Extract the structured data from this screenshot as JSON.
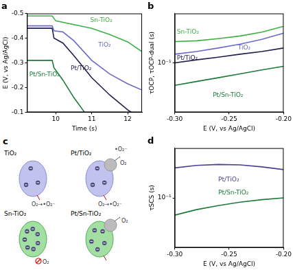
{
  "chart_data": [
    {
      "type": "line",
      "title": "a",
      "x_label": "Time (s)",
      "y_label": "E (V, vs Ag/AgCl)",
      "xlim": [
        9.2,
        12.4
      ],
      "xticks": [
        10,
        11,
        12
      ],
      "ylim": [
        -0.1,
        -0.5
      ],
      "yticks": [
        -0.5,
        -0.4,
        -0.3,
        -0.2,
        -0.1
      ],
      "grid": false,
      "series": [
        {
          "name": "Sn-TiO₂",
          "color": "#3cb043",
          "x": [
            9.2,
            9.9,
            10.0,
            10.5,
            11.0,
            11.5,
            12.0,
            12.4
          ],
          "values": [
            -0.49,
            -0.49,
            -0.47,
            -0.455,
            -0.44,
            -0.415,
            -0.385,
            -0.345
          ]
        },
        {
          "name": "TiO₂",
          "color": "#6a6ac8",
          "x": [
            9.2,
            9.9,
            9.95,
            10.2,
            10.5,
            11.0,
            11.5,
            12.0,
            12.4
          ],
          "values": [
            -0.45,
            -0.45,
            -0.43,
            -0.425,
            -0.39,
            -0.31,
            -0.255,
            -0.215,
            -0.19
          ]
        },
        {
          "name": "Pt/TiO₂",
          "color": "#1f1f4f",
          "x": [
            9.2,
            9.9,
            9.95,
            10.2,
            10.5,
            11.0,
            11.5,
            12.0,
            12.1
          ],
          "values": [
            -0.44,
            -0.44,
            -0.4,
            -0.38,
            -0.33,
            -0.24,
            -0.17,
            -0.11,
            -0.1
          ]
        },
        {
          "name": "Pt/Sn-TiO₂",
          "color": "#1a7a3a",
          "x": [
            9.2,
            9.9,
            9.95,
            10.2,
            10.5,
            10.8
          ],
          "values": [
            -0.31,
            -0.31,
            -0.28,
            -0.23,
            -0.16,
            -0.1
          ]
        }
      ]
    },
    {
      "type": "line",
      "title": "b",
      "x_label": "E (V, vs Ag/AgCl)",
      "y_label": "τOCP, τOCP-dual (s)",
      "log": "y",
      "xlim": [
        -0.3,
        -0.2
      ],
      "xticks": [
        {
          "value": -0.3,
          "label": "-0.30"
        },
        -0.25,
        {
          "value": -0.2,
          "label": "-0.20"
        }
      ],
      "ylim": [
        0.01,
        1
      ],
      "yticks": [
        {
          "value": 0.1,
          "label": "10⁻¹"
        }
      ],
      "grid": false,
      "series": [
        {
          "name": "Sn-TiO₂",
          "color": "#3cb043",
          "x": [
            -0.3,
            -0.28,
            -0.26,
            -0.24,
            -0.22,
            -0.2
          ],
          "values": [
            0.27,
            0.28,
            0.31,
            0.35,
            0.42,
            0.55
          ]
        },
        {
          "name": "TiO₂",
          "color": "#6a6ac8",
          "x": [
            -0.3,
            -0.28,
            -0.26,
            -0.24,
            -0.22,
            -0.2
          ],
          "values": [
            0.15,
            0.17,
            0.2,
            0.24,
            0.3,
            0.4
          ]
        },
        {
          "name": "Pt/TiO₂",
          "color": "#1f1f4f",
          "x": [
            -0.3,
            -0.28,
            -0.26,
            -0.24,
            -0.22,
            -0.2
          ],
          "values": [
            0.1,
            0.115,
            0.13,
            0.15,
            0.17,
            0.2
          ]
        },
        {
          "name": "Pt/Sn-TiO₂",
          "color": "#1a7a3a",
          "x": [
            -0.3,
            -0.28,
            -0.26,
            -0.24,
            -0.22,
            -0.2
          ],
          "values": [
            0.035,
            0.042,
            0.05,
            0.06,
            0.072,
            0.085
          ]
        }
      ]
    },
    {
      "type": "line",
      "title": "d",
      "x_label": "E (V, vs Ag/AgCl)",
      "y_label": "τSCS (s)",
      "log": "y",
      "xlim": [
        -0.3,
        -0.2
      ],
      "xticks": [
        {
          "value": -0.3,
          "label": "-0.30"
        },
        -0.25,
        {
          "value": -0.2,
          "label": "-0.20"
        }
      ],
      "ylim": [
        0.01,
        1
      ],
      "yticks": [
        {
          "value": 0.1,
          "label": "10⁻¹"
        }
      ],
      "grid": false,
      "series": [
        {
          "name": "Pt/TiO₂",
          "color": "#4a3f8f",
          "x": [
            -0.3,
            -0.28,
            -0.26,
            -0.24,
            -0.22,
            -0.2
          ],
          "values": [
            0.4,
            0.45,
            0.47,
            0.46,
            0.42,
            0.37
          ]
        },
        {
          "name": "Pt/Sn-TiO₂",
          "color": "#1a7a3a",
          "x": [
            -0.3,
            -0.28,
            -0.26,
            -0.24,
            -0.22,
            -0.2
          ],
          "values": [
            0.045,
            0.058,
            0.07,
            0.082,
            0.092,
            0.1
          ]
        }
      ]
    }
  ],
  "diagram": {
    "title": "c",
    "particles": [
      {
        "label": "TiO₂",
        "texts": [
          "O₂→•O₂⁻"
        ]
      },
      {
        "label": "Pt/TiO₂",
        "texts": [
          "•O₂⁻",
          "O₂",
          "O₂→•O₂⁻"
        ]
      },
      {
        "label": "Sn-TiO₂",
        "texts": [
          "O₂"
        ]
      },
      {
        "label": "Pt/Sn-TiO₂",
        "texts": [
          "O₂"
        ]
      }
    ]
  }
}
